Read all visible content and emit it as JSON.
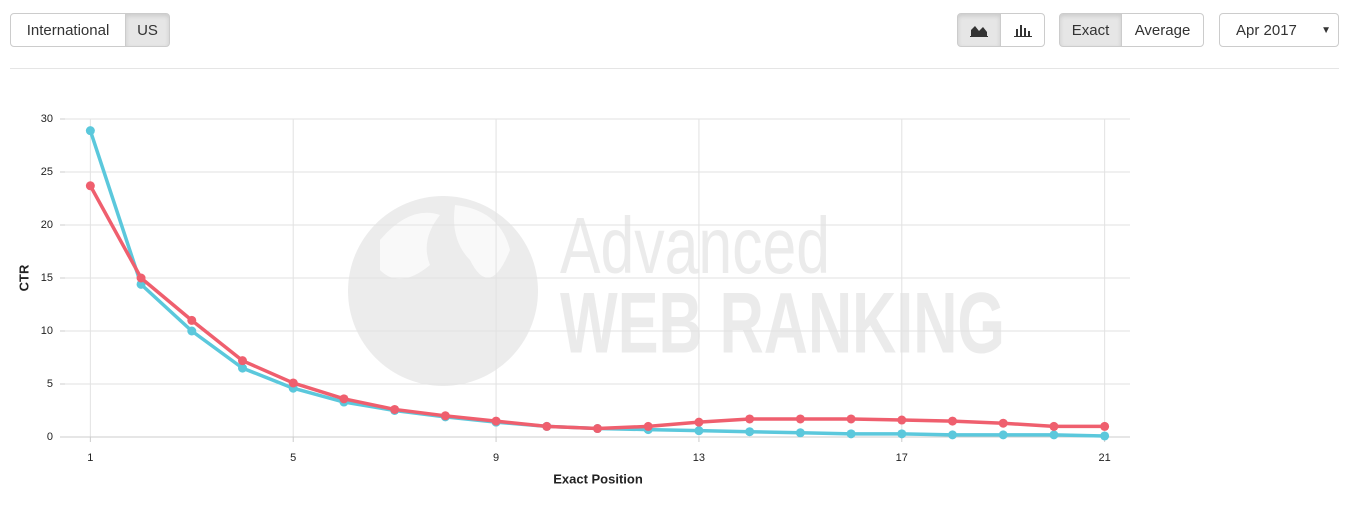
{
  "toolbar": {
    "region_options": [
      "International",
      "US"
    ],
    "mode_options": [
      "Exact",
      "Average"
    ],
    "month": "Apr 2017"
  },
  "watermark": {
    "line1": "Advanced",
    "line2": "WEB RANKING"
  },
  "chart_data": {
    "type": "line",
    "x_label": "Exact Position",
    "y_label": "CTR",
    "x": [
      1,
      2,
      3,
      4,
      5,
      6,
      7,
      8,
      9,
      10,
      11,
      12,
      13,
      14,
      15,
      16,
      17,
      18,
      19,
      20,
      21
    ],
    "series": [
      {
        "color": "#5bc8dc",
        "values": [
          28.9,
          14.4,
          10.0,
          6.5,
          4.6,
          3.3,
          2.5,
          1.9,
          1.4,
          1.0,
          0.8,
          0.7,
          0.6,
          0.5,
          0.4,
          0.3,
          0.3,
          0.2,
          0.2,
          0.2,
          0.1
        ]
      },
      {
        "color": "#ef5f6e",
        "values": [
          23.7,
          15.0,
          11.0,
          7.2,
          5.1,
          3.6,
          2.6,
          2.0,
          1.5,
          1.0,
          0.8,
          1.0,
          1.4,
          1.7,
          1.7,
          1.7,
          1.6,
          1.5,
          1.3,
          1.0,
          1.0
        ]
      }
    ],
    "xlim": [
      0.5,
      21.5
    ],
    "xticks": [
      1,
      5,
      9,
      13,
      17,
      21
    ],
    "ylim": [
      0,
      30
    ],
    "yticks": [
      0,
      5,
      10,
      15,
      20,
      25,
      30
    ],
    "grid": true
  }
}
